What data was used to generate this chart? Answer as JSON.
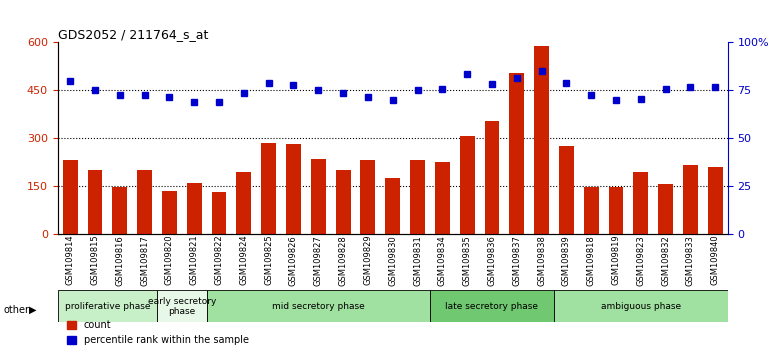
{
  "title": "GDS2052 / 211764_s_at",
  "samples": [
    "GSM109814",
    "GSM109815",
    "GSM109816",
    "GSM109817",
    "GSM109820",
    "GSM109821",
    "GSM109822",
    "GSM109824",
    "GSM109825",
    "GSM109826",
    "GSM109827",
    "GSM109828",
    "GSM109829",
    "GSM109830",
    "GSM109831",
    "GSM109834",
    "GSM109835",
    "GSM109836",
    "GSM109837",
    "GSM109838",
    "GSM109839",
    "GSM109818",
    "GSM109819",
    "GSM109823",
    "GSM109832",
    "GSM109833",
    "GSM109840"
  ],
  "counts": [
    230,
    200,
    145,
    200,
    135,
    160,
    130,
    195,
    285,
    280,
    235,
    200,
    230,
    175,
    230,
    225,
    305,
    355,
    505,
    590,
    275,
    145,
    145,
    195,
    155,
    215,
    210
  ],
  "percentiles": [
    80,
    75,
    72.5,
    72.5,
    71.5,
    69,
    69,
    73.5,
    79,
    77.5,
    75,
    73.5,
    71.5,
    70,
    75,
    75.5,
    83.5,
    78.5,
    81.5,
    85,
    79,
    72.5,
    70,
    70.5,
    75.5,
    76.5,
    76.5
  ],
  "phases": [
    {
      "name": "proliferative phase",
      "start": 0,
      "end": 4,
      "color": "#c8f0c8"
    },
    {
      "name": "early secretory\nphase",
      "start": 4,
      "end": 6,
      "color": "#e8f8e8"
    },
    {
      "name": "mid secretory phase",
      "start": 6,
      "end": 15,
      "color": "#a0e0a0"
    },
    {
      "name": "late secretory phase",
      "start": 15,
      "end": 20,
      "color": "#70c870"
    },
    {
      "name": "ambiguous phase",
      "start": 20,
      "end": 27,
      "color": "#a0e0a0"
    }
  ],
  "bar_color": "#cc2200",
  "dot_color": "#0000cc",
  "left_ylim": [
    0,
    600
  ],
  "right_ylim": [
    0,
    100
  ],
  "left_yticks": [
    0,
    150,
    300,
    450,
    600
  ],
  "right_yticks": [
    0,
    25,
    50,
    75,
    100
  ],
  "right_yticklabels": [
    "0",
    "25",
    "50",
    "75",
    "100%"
  ],
  "grid_values": [
    150,
    300,
    450
  ],
  "bar_width": 0.6
}
